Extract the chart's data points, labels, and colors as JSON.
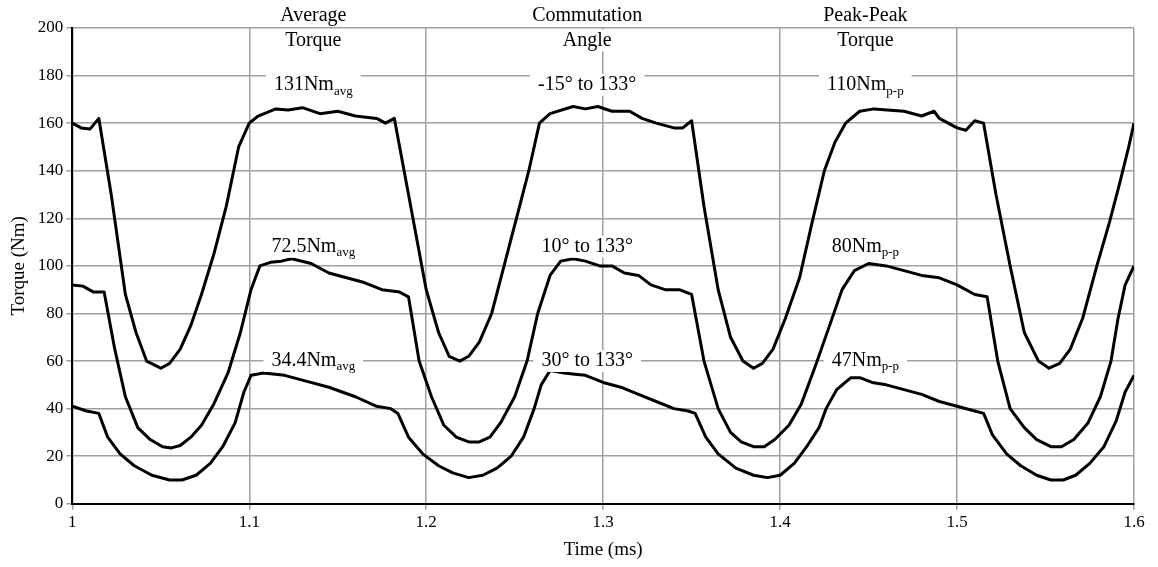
{
  "chart_data": {
    "type": "line",
    "xlabel": "Time (ms)",
    "ylabel": "Torque (Nm)",
    "xlim": [
      1,
      1.6
    ],
    "xticks": [
      1,
      1.1,
      1.2,
      1.3,
      1.4,
      1.5,
      1.6
    ],
    "ylim": [
      0,
      200
    ],
    "yticks": [
      0,
      20,
      40,
      60,
      80,
      100,
      120,
      140,
      160,
      180,
      200
    ],
    "grid": true,
    "legend": false,
    "marker": "none",
    "line_style": "solid",
    "series": [
      {
        "color": "#000000",
        "x": [
          1.0,
          1.005,
          1.01,
          1.015,
          1.022,
          1.03,
          1.036,
          1.042,
          1.05,
          1.055,
          1.061,
          1.067,
          1.073,
          1.08,
          1.087,
          1.094,
          1.1,
          1.105,
          1.115,
          1.122,
          1.13,
          1.14,
          1.15,
          1.16,
          1.172,
          1.177,
          1.182,
          1.19,
          1.2,
          1.207,
          1.213,
          1.219,
          1.224,
          1.23,
          1.237,
          1.244,
          1.251,
          1.258,
          1.264,
          1.27,
          1.283,
          1.29,
          1.297,
          1.305,
          1.315,
          1.322,
          1.33,
          1.34,
          1.345,
          1.35,
          1.357,
          1.365,
          1.372,
          1.379,
          1.385,
          1.39,
          1.396,
          1.403,
          1.411,
          1.418,
          1.425,
          1.431,
          1.437,
          1.445,
          1.453,
          1.47,
          1.48,
          1.487,
          1.49,
          1.5,
          1.505,
          1.51,
          1.515,
          1.522,
          1.53,
          1.538,
          1.546,
          1.552,
          1.558,
          1.564,
          1.571,
          1.579,
          1.586,
          1.592,
          1.597,
          1.6
        ],
        "values": [
          160,
          158,
          157.5,
          162,
          130,
          88,
          72,
          60,
          57,
          59,
          65,
          75,
          88,
          105,
          125,
          150,
          160,
          163,
          166,
          165.5,
          166.5,
          164,
          165,
          163,
          162,
          160,
          162,
          130,
          90,
          72,
          62,
          60,
          62,
          68,
          80,
          100,
          120,
          140,
          160,
          164,
          167,
          166,
          167,
          165,
          165,
          162,
          160,
          158,
          158,
          161,
          125,
          90,
          70,
          60,
          57,
          59,
          65,
          78,
          95,
          118,
          140,
          152,
          160,
          165,
          166,
          165,
          163,
          165,
          162,
          158,
          157,
          161,
          160,
          130,
          100,
          72,
          60,
          57,
          59,
          65,
          78,
          100,
          118,
          135,
          150,
          160
        ]
      },
      {
        "color": "#000000",
        "x": [
          1.0,
          1.006,
          1.012,
          1.018,
          1.024,
          1.03,
          1.037,
          1.044,
          1.051,
          1.056,
          1.061,
          1.067,
          1.073,
          1.08,
          1.088,
          1.095,
          1.101,
          1.106,
          1.112,
          1.118,
          1.124,
          1.135,
          1.145,
          1.155,
          1.165,
          1.175,
          1.185,
          1.19,
          1.196,
          1.203,
          1.21,
          1.217,
          1.224,
          1.23,
          1.236,
          1.242,
          1.25,
          1.257,
          1.263,
          1.27,
          1.276,
          1.283,
          1.29,
          1.298,
          1.305,
          1.312,
          1.32,
          1.327,
          1.335,
          1.343,
          1.35,
          1.357,
          1.365,
          1.372,
          1.378,
          1.385,
          1.391,
          1.397,
          1.405,
          1.412,
          1.42,
          1.428,
          1.435,
          1.442,
          1.45,
          1.46,
          1.47,
          1.48,
          1.49,
          1.5,
          1.51,
          1.517,
          1.523,
          1.53,
          1.538,
          1.545,
          1.553,
          1.559,
          1.566,
          1.574,
          1.581,
          1.587,
          1.591,
          1.595,
          1.6
        ],
        "values": [
          92,
          91.5,
          89,
          89,
          65,
          45,
          32,
          27,
          24,
          23.5,
          24.5,
          28,
          33,
          42,
          55,
          72,
          90,
          100,
          101.5,
          102,
          103,
          101,
          97,
          95,
          93,
          90,
          89,
          87,
          60,
          45,
          33,
          28,
          26,
          26,
          28,
          34,
          45,
          60,
          80,
          96,
          102,
          103,
          102,
          100,
          100,
          97,
          96,
          92,
          90,
          90,
          88,
          60,
          40,
          30,
          26,
          24,
          24,
          27,
          33,
          42,
          58,
          75,
          90,
          98,
          101,
          100,
          98,
          96,
          95,
          92,
          88,
          87,
          60,
          40,
          32,
          27,
          24,
          24,
          27,
          34,
          45,
          60,
          78,
          92,
          100
        ]
      },
      {
        "color": "#000000",
        "x": [
          1.0,
          1.008,
          1.015,
          1.02,
          1.027,
          1.035,
          1.045,
          1.055,
          1.062,
          1.07,
          1.078,
          1.085,
          1.092,
          1.097,
          1.101,
          1.108,
          1.12,
          1.13,
          1.145,
          1.16,
          1.172,
          1.18,
          1.184,
          1.19,
          1.198,
          1.207,
          1.215,
          1.224,
          1.232,
          1.24,
          1.248,
          1.255,
          1.261,
          1.265,
          1.27,
          1.278,
          1.284,
          1.29,
          1.3,
          1.31,
          1.32,
          1.33,
          1.34,
          1.348,
          1.352,
          1.358,
          1.365,
          1.375,
          1.385,
          1.393,
          1.4,
          1.408,
          1.415,
          1.422,
          1.426,
          1.432,
          1.44,
          1.445,
          1.452,
          1.46,
          1.47,
          1.48,
          1.49,
          1.5,
          1.51,
          1.515,
          1.52,
          1.528,
          1.536,
          1.545,
          1.553,
          1.56,
          1.567,
          1.575,
          1.583,
          1.59,
          1.595,
          1.6
        ],
        "values": [
          41,
          39,
          38,
          28,
          21,
          16,
          12,
          10,
          10,
          12,
          17,
          24,
          34,
          47,
          54,
          55,
          54,
          52,
          49,
          45,
          41,
          40,
          38,
          28,
          21,
          16,
          13,
          11,
          12,
          15,
          20,
          28,
          40,
          50,
          56,
          55,
          54.5,
          54,
          51,
          49,
          46,
          43,
          40,
          39,
          38,
          28,
          21,
          15,
          12,
          11,
          12,
          17,
          24,
          32,
          40,
          48,
          53,
          53,
          51,
          50,
          48,
          46,
          43,
          41,
          39,
          38,
          29,
          21,
          16,
          12,
          10,
          10,
          12,
          17,
          24,
          35,
          47,
          54
        ]
      }
    ],
    "annotations": [
      "Average\nTorque",
      "Commutation\nAngle",
      "Peak-Peak\nTorque",
      "131Nm$_{avg}$",
      "-15° to 133°",
      "110Nm$_{p-p}$",
      "72.5Nm$_{avg}$",
      "10° to 133°",
      "80Nm$_{p-p}$",
      "34.4Nm$_{avg}$",
      "30° to 133°",
      "47Nm$_{p-p}$"
    ]
  }
}
